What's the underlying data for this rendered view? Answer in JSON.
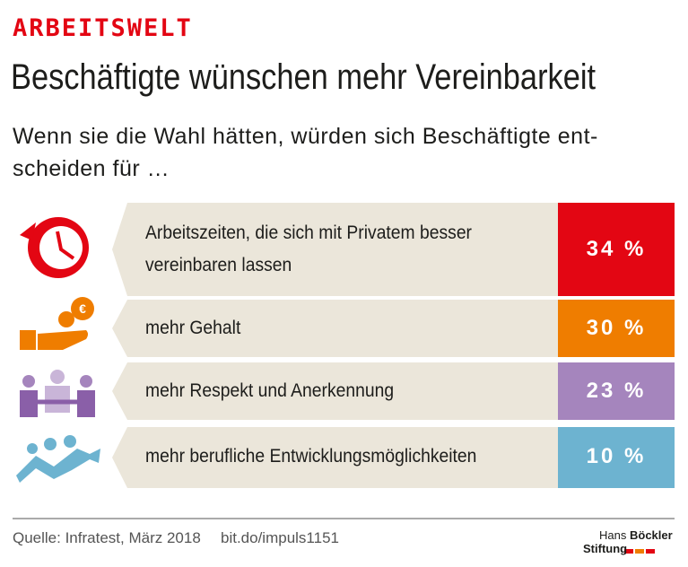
{
  "header": {
    "kicker": "ARBEITSWELT",
    "title": "Beschäftigte wünschen mehr Vereinbarkeit",
    "subtitle": [
      "Wenn sie die Wahl hätten, würden sich Beschäftigte ent-",
      "scheiden für …"
    ]
  },
  "rows": [
    {
      "label": [
        "Arbeitszeiten, die sich mit Privatem besser",
        "vereinbaren lassen"
      ],
      "value": "34 %"
    },
    {
      "label": [
        "mehr Gehalt"
      ],
      "value": "30 %"
    },
    {
      "label": [
        "mehr Respekt und Anerkennung"
      ],
      "value": "23 %"
    },
    {
      "label": [
        "mehr berufliche Entwicklungsmöglichkeiten"
      ],
      "value": "10 %"
    }
  ],
  "footer": {
    "source": "Quelle: Infratest, März 2018",
    "link": "bit.do/impuls1151",
    "logo": [
      "Hans",
      "Böckler",
      "Stiftung"
    ]
  }
}
